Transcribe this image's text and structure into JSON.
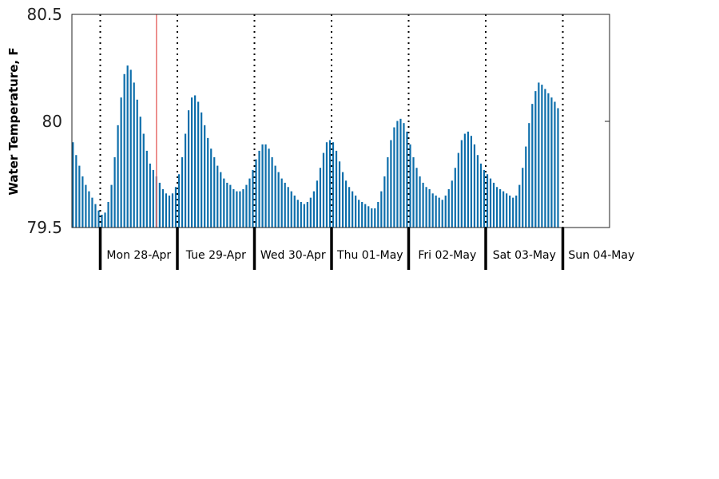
{
  "chart_data": {
    "type": "bar",
    "ylabel": "Water Temperature, F",
    "ylim": [
      79.5,
      80.5
    ],
    "yticks": [
      79.5,
      80,
      80.5
    ],
    "ytick_labels": [
      "79.5",
      "80",
      "80.5"
    ],
    "bar_color": "#0d6eab",
    "current_time_line_color": "#e8706e",
    "current_time_hour": 17.5,
    "day_labels": [
      "Mon 28-Apr",
      "Tue 29-Apr",
      "Wed 30-Apr",
      "Thu 01-May",
      "Fri 02-May",
      "Sat 03-May",
      "Sun 04-May"
    ],
    "x_start_hour": -9,
    "bar_interval_hours": 1,
    "values": [
      79.9,
      79.84,
      79.79,
      79.74,
      79.7,
      79.67,
      79.64,
      79.61,
      79.58,
      79.56,
      79.57,
      79.62,
      79.7,
      79.83,
      79.98,
      80.11,
      80.22,
      80.26,
      80.24,
      80.18,
      80.1,
      80.02,
      79.94,
      79.86,
      79.8,
      79.77,
      79.74,
      79.71,
      79.68,
      79.66,
      79.65,
      79.66,
      79.69,
      79.75,
      79.83,
      79.94,
      80.05,
      80.11,
      80.12,
      80.09,
      80.04,
      79.98,
      79.92,
      79.87,
      79.83,
      79.79,
      79.76,
      79.73,
      79.71,
      79.7,
      79.68,
      79.67,
      79.67,
      79.68,
      79.7,
      79.73,
      79.77,
      79.82,
      79.86,
      79.89,
      79.89,
      79.87,
      79.83,
      79.79,
      79.76,
      79.73,
      79.71,
      79.69,
      79.67,
      79.65,
      79.63,
      79.62,
      79.61,
      79.62,
      79.64,
      79.67,
      79.72,
      79.78,
      79.85,
      79.9,
      79.91,
      79.9,
      79.86,
      79.81,
      79.76,
      79.72,
      79.69,
      79.67,
      79.65,
      79.63,
      79.62,
      79.61,
      79.6,
      79.59,
      79.59,
      79.62,
      79.67,
      79.74,
      79.83,
      79.91,
      79.97,
      80.0,
      80.01,
      79.99,
      79.95,
      79.89,
      79.83,
      79.78,
      79.74,
      79.71,
      79.69,
      79.68,
      79.66,
      79.65,
      79.64,
      79.63,
      79.65,
      79.68,
      79.72,
      79.78,
      79.85,
      79.91,
      79.94,
      79.95,
      79.93,
      79.89,
      79.84,
      79.8,
      79.77,
      79.75,
      79.73,
      79.71,
      79.69,
      79.68,
      79.67,
      79.66,
      79.65,
      79.64,
      79.65,
      79.7,
      79.78,
      79.88,
      79.99,
      80.08,
      80.14,
      80.18,
      80.17,
      80.15,
      80.13,
      80.11,
      80.09,
      80.06
    ]
  }
}
